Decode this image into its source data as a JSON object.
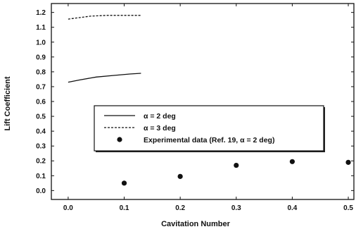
{
  "chart_data": {
    "type": "line",
    "xlabel": "Cavitation Number",
    "ylabel": "Lift Coefficient",
    "xlim": [
      -0.03,
      0.51
    ],
    "ylim": [
      -0.06,
      1.26
    ],
    "x_ticks": [
      "0.0",
      "0.1",
      "0.2",
      "0.3",
      "0.4",
      "0.5"
    ],
    "y_ticks": [
      "0.0",
      "0.1",
      "0.2",
      "0.3",
      "0.4",
      "0.5",
      "0.6",
      "0.7",
      "0.8",
      "0.9",
      "1.0",
      "1.1",
      "1.2"
    ],
    "grid": false,
    "legend_position": "center",
    "series": [
      {
        "name": "α = 2 deg",
        "style": "solid",
        "x": [
          0.0,
          0.02,
          0.05,
          0.08,
          0.11,
          0.13
        ],
        "y": [
          0.73,
          0.745,
          0.765,
          0.775,
          0.785,
          0.79
        ]
      },
      {
        "name": "α = 3 deg",
        "style": "dashed",
        "x": [
          0.0,
          0.02,
          0.04,
          0.07,
          0.1,
          0.13
        ],
        "y": [
          1.155,
          1.165,
          1.175,
          1.18,
          1.18,
          1.18
        ]
      },
      {
        "name": "Experimental data (Ref. 19,  α = 2 deg)",
        "style": "marker",
        "x": [
          0.1,
          0.2,
          0.3,
          0.4,
          0.5
        ],
        "y": [
          0.05,
          0.095,
          0.17,
          0.195,
          0.19
        ]
      }
    ]
  }
}
